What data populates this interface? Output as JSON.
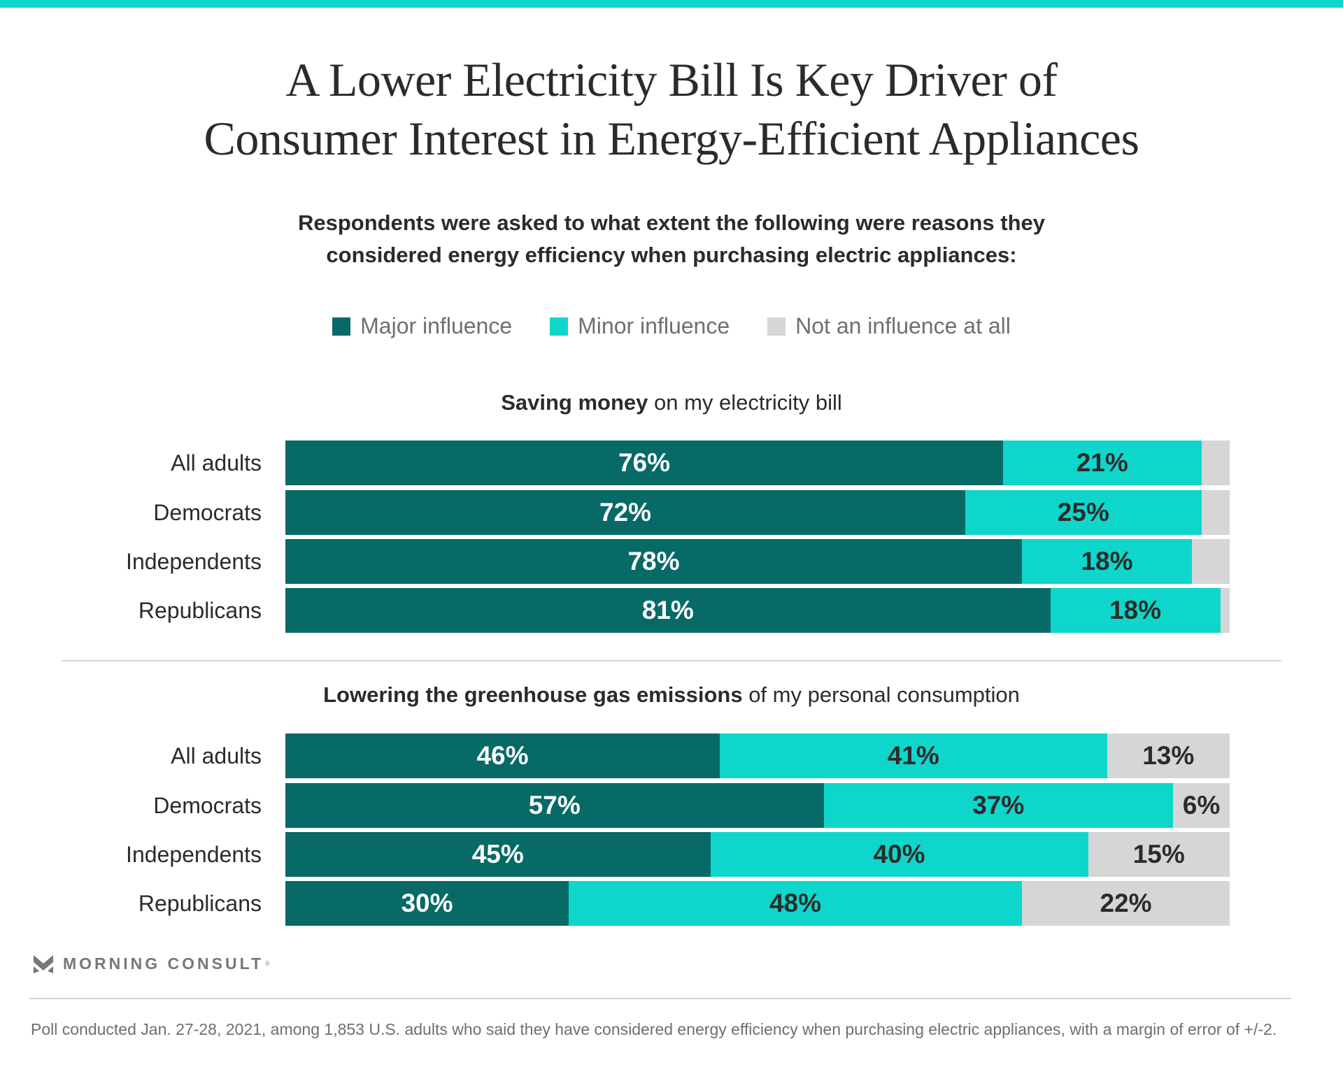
{
  "header": {
    "title_line1": "A Lower Electricity Bill Is Key Driver of",
    "title_line2": "Consumer Interest in Energy-Efficient Appliances",
    "subtitle_line1": "Respondents were asked to what extent the following were reasons they",
    "subtitle_line2": "considered energy efficiency when purchasing electric appliances:"
  },
  "legend": [
    {
      "label": "Major influence",
      "color": "#076a66"
    },
    {
      "label": "Minor influence",
      "color": "#0fd6cb"
    },
    {
      "label": "Not an influence at all",
      "color": "#d6d6d6"
    }
  ],
  "colors": {
    "major": "#076a66",
    "minor": "#0fd6cb",
    "none": "#d6d6d6",
    "accent_bar": "#0fd6cb"
  },
  "chart_data": [
    {
      "type": "bar",
      "orientation": "horizontal-stacked-100",
      "title_bold": "Saving money",
      "title_rest": " on my electricity bill",
      "categories": [
        "All adults",
        "Democrats",
        "Independents",
        "Republicans"
      ],
      "series": [
        {
          "name": "Major influence",
          "values": [
            76,
            72,
            78,
            81
          ],
          "labels": [
            "76%",
            "72%",
            "78%",
            "81%"
          ]
        },
        {
          "name": "Minor influence",
          "values": [
            21,
            25,
            18,
            18
          ],
          "labels": [
            "21%",
            "25%",
            "18%",
            "18%"
          ]
        },
        {
          "name": "Not an influence at all",
          "values": [
            3,
            3,
            4,
            1
          ],
          "labels": [
            "",
            "",
            "",
            ""
          ]
        }
      ],
      "xlim": [
        0,
        100
      ]
    },
    {
      "type": "bar",
      "orientation": "horizontal-stacked-100",
      "title_bold": "Lowering the greenhouse gas emissions",
      "title_rest": " of my personal consumption",
      "categories": [
        "All adults",
        "Democrats",
        "Independents",
        "Republicans"
      ],
      "series": [
        {
          "name": "Major influence",
          "values": [
            46,
            57,
            45,
            30
          ],
          "labels": [
            "46%",
            "57%",
            "45%",
            "30%"
          ]
        },
        {
          "name": "Minor influence",
          "values": [
            41,
            37,
            40,
            48
          ],
          "labels": [
            "41%",
            "37%",
            "40%",
            "48%"
          ]
        },
        {
          "name": "Not an influence at all",
          "values": [
            13,
            6,
            15,
            22
          ],
          "labels": [
            "13%",
            "6%",
            "15%",
            "22%"
          ]
        }
      ],
      "xlim": [
        0,
        100
      ]
    }
  ],
  "footer": {
    "brand": "MORNING CONSULT",
    "brand_mark": "®",
    "note": "Poll conducted Jan. 27-28, 2021, among 1,853 U.S. adults who said they have considered energy efficiency when purchasing electric appliances, with a margin of error of +/-2."
  }
}
